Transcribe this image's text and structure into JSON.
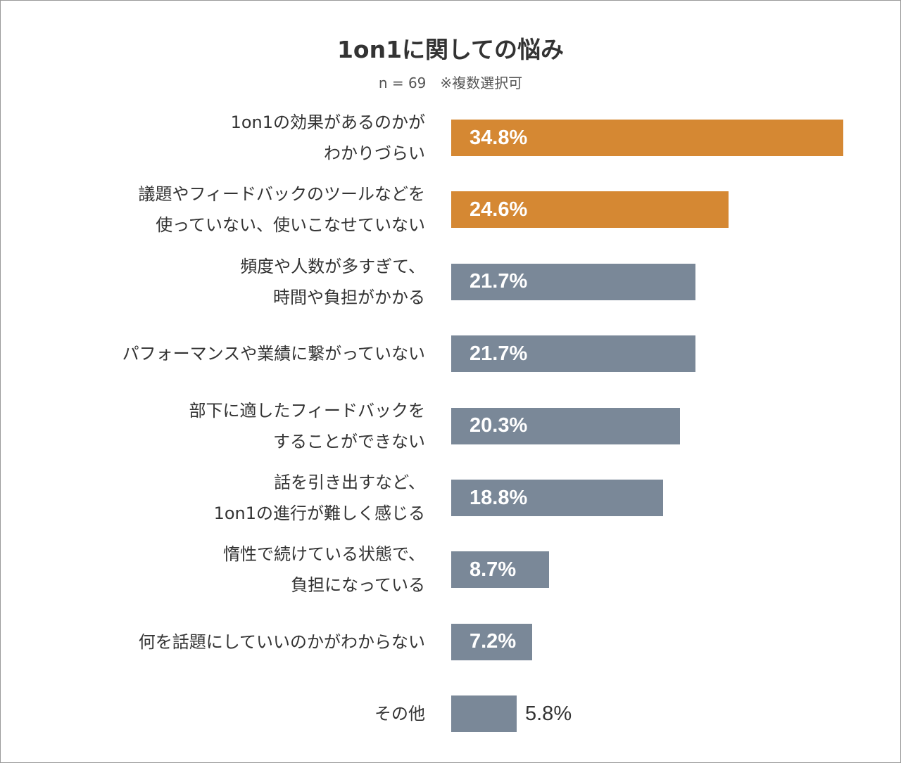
{
  "chart_data": {
    "type": "bar",
    "orientation": "horizontal",
    "title": "1on1に関しての悩み",
    "subtitle": "n = 69　※複数選択可",
    "xlim": [
      0,
      34.8
    ],
    "unit": "%",
    "categories": [
      [
        "1on1の効果があるのかが",
        "わかりづらい"
      ],
      [
        "議題やフィードバックのツールなどを",
        "使っていない、使いこなせていない"
      ],
      [
        "頻度や人数が多すぎて、",
        "時間や負担がかかる"
      ],
      [
        "パフォーマンスや業績に繋がっていない"
      ],
      [
        "部下に適したフィードバックを",
        "することができない"
      ],
      [
        "話を引き出すなど、",
        "1on1の進行が難しく感じる"
      ],
      [
        "惰性で続けている状態で、",
        "負担になっている"
      ],
      [
        "何を話題にしていいのかがわからない"
      ],
      [
        "その他"
      ]
    ],
    "values": [
      34.8,
      24.6,
      21.7,
      21.7,
      20.3,
      18.8,
      8.7,
      7.2,
      5.8
    ],
    "value_labels": [
      "34.8%",
      "24.6%",
      "21.7%",
      "21.7%",
      "20.3%",
      "18.8%",
      "8.7%",
      "7.2%",
      "5.8%"
    ],
    "highlight_count": 2
  },
  "colors": {
    "highlight": "#d58833",
    "normal": "#7a8898"
  }
}
